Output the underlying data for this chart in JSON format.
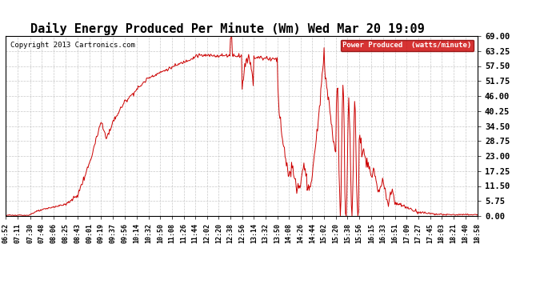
{
  "title": "Daily Energy Produced Per Minute (Wm) Wed Mar 20 19:09",
  "copyright": "Copyright 2013 Cartronics.com",
  "legend_label": "Power Produced  (watts/minute)",
  "y_ticks": [
    0.0,
    5.75,
    11.5,
    17.25,
    23.0,
    28.75,
    34.5,
    40.25,
    46.0,
    51.75,
    57.5,
    63.25,
    69.0
  ],
  "y_max": 69.0,
  "y_min": 0.0,
  "line_color": "#CC0000",
  "background_color": "#ffffff",
  "grid_color": "#bbbbbb",
  "title_fontsize": 11,
  "legend_bg": "#CC0000",
  "legend_fg": "#ffffff",
  "x_labels": [
    "06:52",
    "07:11",
    "07:30",
    "07:48",
    "08:06",
    "08:25",
    "08:43",
    "09:01",
    "09:19",
    "09:37",
    "09:56",
    "10:14",
    "10:32",
    "10:50",
    "11:08",
    "11:26",
    "11:44",
    "12:02",
    "12:20",
    "12:38",
    "12:56",
    "13:14",
    "13:32",
    "13:50",
    "14:08",
    "14:26",
    "14:44",
    "15:02",
    "15:20",
    "15:38",
    "15:56",
    "16:15",
    "16:33",
    "16:51",
    "17:09",
    "17:27",
    "17:45",
    "18:03",
    "18:21",
    "18:40",
    "18:58"
  ]
}
